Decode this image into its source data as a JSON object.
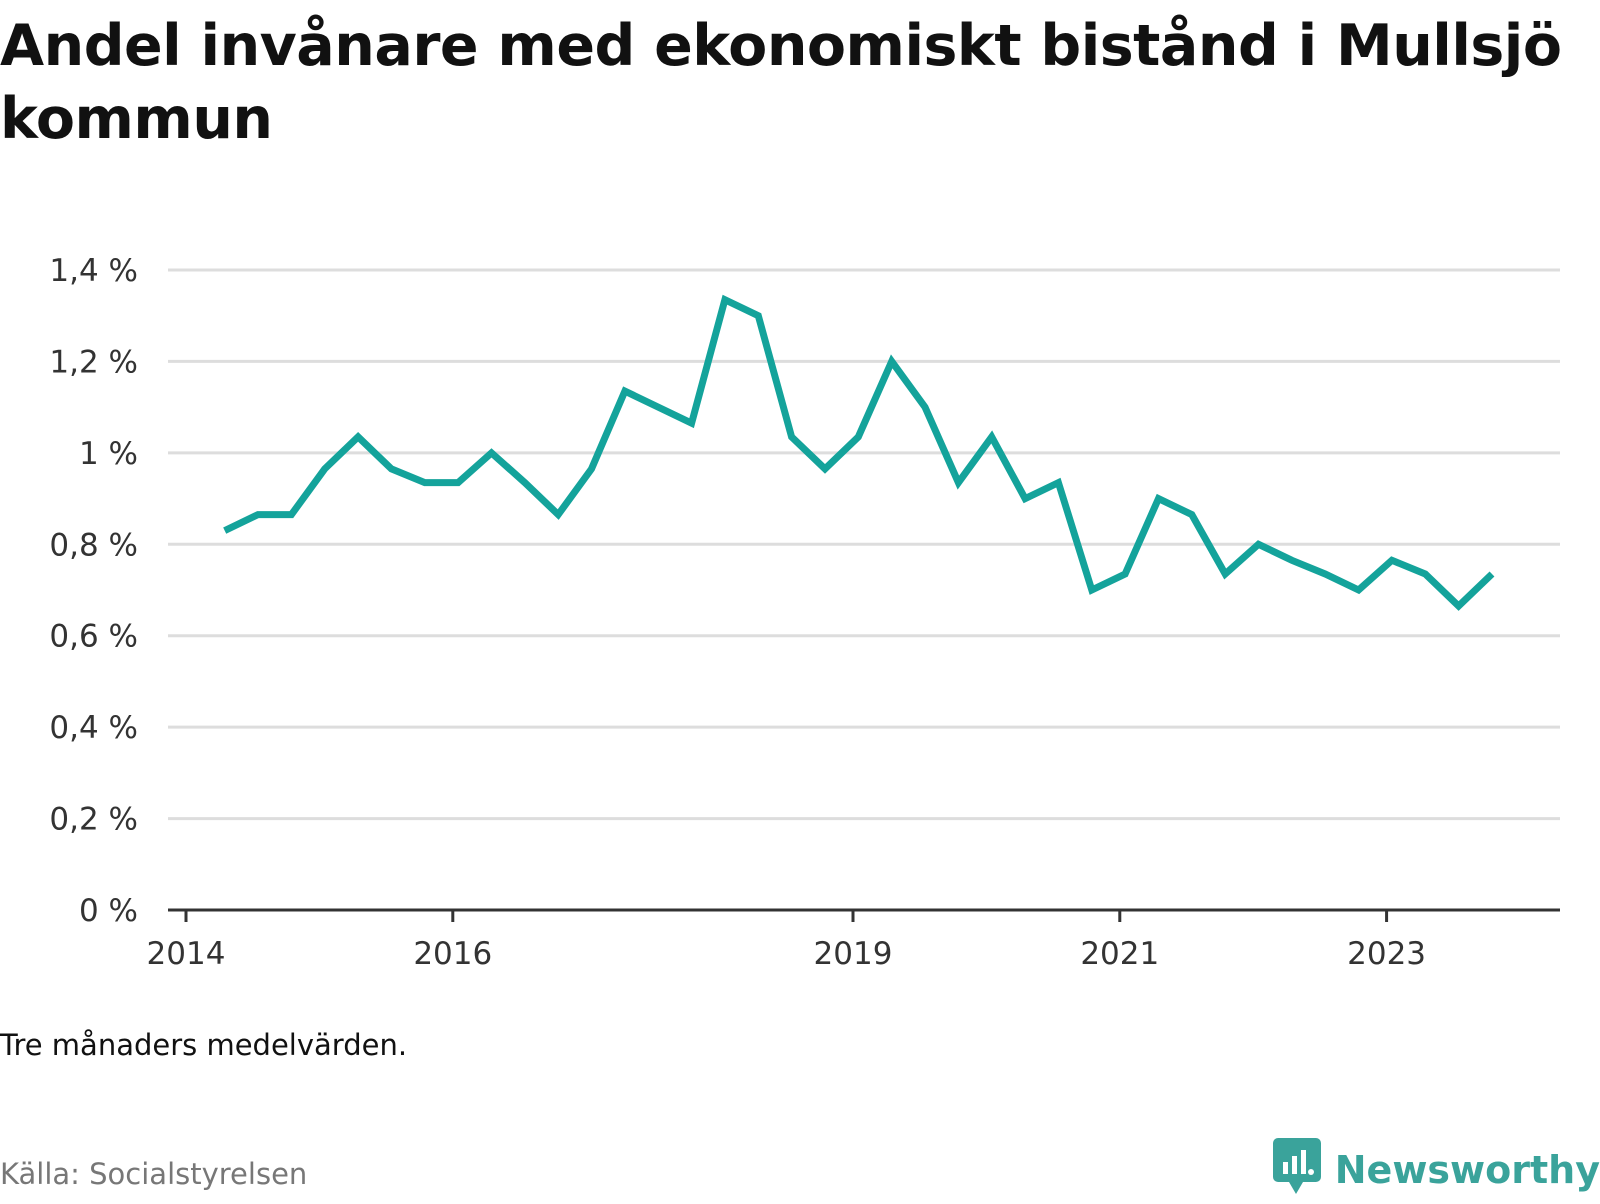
{
  "title": "Andel invånare med ekonomiskt bistånd i Mullsjö kommun",
  "note": "Tre månaders medelvärden.",
  "source": "Källa: Socialstyrelsen",
  "brand": {
    "name": "Newsworthy",
    "icon": "newsworthy-logo-icon"
  },
  "colors": {
    "line": "#14a39b",
    "grid": "#dddddd",
    "axis": "#333333",
    "brand": "#3aa39b"
  },
  "chart_data": {
    "type": "line",
    "title": "Andel invånare med ekonomiskt bistånd i Mullsjö kommun",
    "xlabel": "",
    "ylabel": "",
    "ylim": [
      0,
      1.4
    ],
    "xlim": [
      2014,
      2024.3
    ],
    "yticks": [
      {
        "value": 0,
        "label": "0 %"
      },
      {
        "value": 0.2,
        "label": "0,2 %"
      },
      {
        "value": 0.4,
        "label": "0,4 %"
      },
      {
        "value": 0.6,
        "label": "0,6 %"
      },
      {
        "value": 0.8,
        "label": "0,8 %"
      },
      {
        "value": 1.0,
        "label": "1 %"
      },
      {
        "value": 1.2,
        "label": "1,2 %"
      },
      {
        "value": 1.4,
        "label": "1,4 %"
      }
    ],
    "xticks": [
      {
        "value": 2014,
        "label": "2014"
      },
      {
        "value": 2016,
        "label": "2016"
      },
      {
        "value": 2019,
        "label": "2019"
      },
      {
        "value": 2021,
        "label": "2021"
      },
      {
        "value": 2023,
        "label": "2023"
      }
    ],
    "grid": true,
    "series": [
      {
        "name": "Andel invånare med ekonomiskt bistånd",
        "x": [
          2014.29,
          2014.54,
          2014.79,
          2015.04,
          2015.29,
          2015.54,
          2015.79,
          2016.04,
          2016.29,
          2016.54,
          2016.79,
          2017.04,
          2017.29,
          2017.54,
          2017.79,
          2018.04,
          2018.29,
          2018.54,
          2018.79,
          2019.04,
          2019.29,
          2019.54,
          2019.79,
          2020.04,
          2020.29,
          2020.54,
          2020.79,
          2021.04,
          2021.29,
          2021.54,
          2021.79,
          2022.04,
          2022.29,
          2022.54,
          2022.79,
          2023.04,
          2023.29,
          2023.54,
          2023.79
        ],
        "values": [
          0.83,
          0.865,
          0.865,
          0.965,
          1.035,
          0.965,
          0.935,
          0.935,
          1.0,
          0.935,
          0.865,
          0.965,
          1.135,
          1.1,
          1.065,
          1.335,
          1.3,
          1.035,
          0.965,
          1.035,
          1.2,
          1.1,
          0.935,
          1.035,
          0.9,
          0.935,
          0.7,
          0.735,
          0.9,
          0.865,
          0.735,
          0.8,
          0.765,
          0.735,
          0.7,
          0.765,
          0.735,
          0.665,
          0.735
        ]
      }
    ]
  }
}
